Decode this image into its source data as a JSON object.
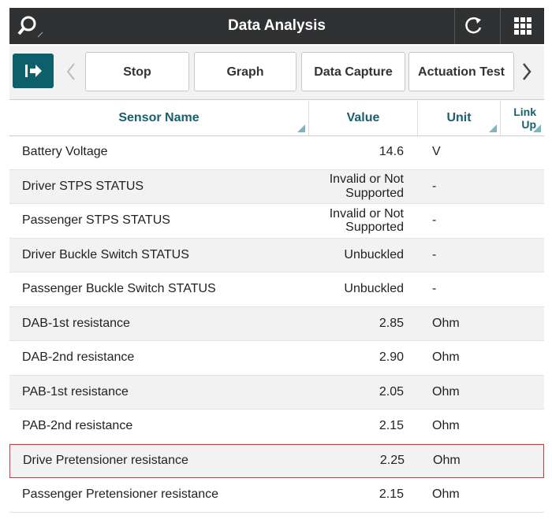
{
  "header": {
    "title": "Data Analysis"
  },
  "toolbar": {
    "buttons": [
      "Stop",
      "Graph",
      "Data Capture",
      "Actuation Test"
    ]
  },
  "table": {
    "columns": [
      "Sensor Name",
      "Value",
      "Unit",
      "Link Up"
    ],
    "rows": [
      [
        "Battery Voltage",
        "14.6",
        "V"
      ],
      [
        "Driver STPS STATUS",
        "Invalid or Not Supported",
        "-"
      ],
      [
        "Passenger STPS STATUS",
        "Invalid or Not Supported",
        "-"
      ],
      [
        "Driver Buckle Switch STATUS",
        "Unbuckled",
        "-"
      ],
      [
        "Passenger Buckle Switch STATUS",
        "Unbuckled",
        "-"
      ],
      [
        "DAB-1st resistance",
        "2.85",
        "Ohm"
      ],
      [
        "DAB-2nd resistance",
        "2.90",
        "Ohm"
      ],
      [
        "PAB-1st resistance",
        "2.05",
        "Ohm"
      ],
      [
        "PAB-2nd resistance",
        "2.15",
        "Ohm"
      ],
      [
        "Drive Pretensioner resistance",
        "2.25",
        "Ohm"
      ],
      [
        "Passenger Pretensioner resistance",
        "2.15",
        "Ohm"
      ]
    ]
  }
}
